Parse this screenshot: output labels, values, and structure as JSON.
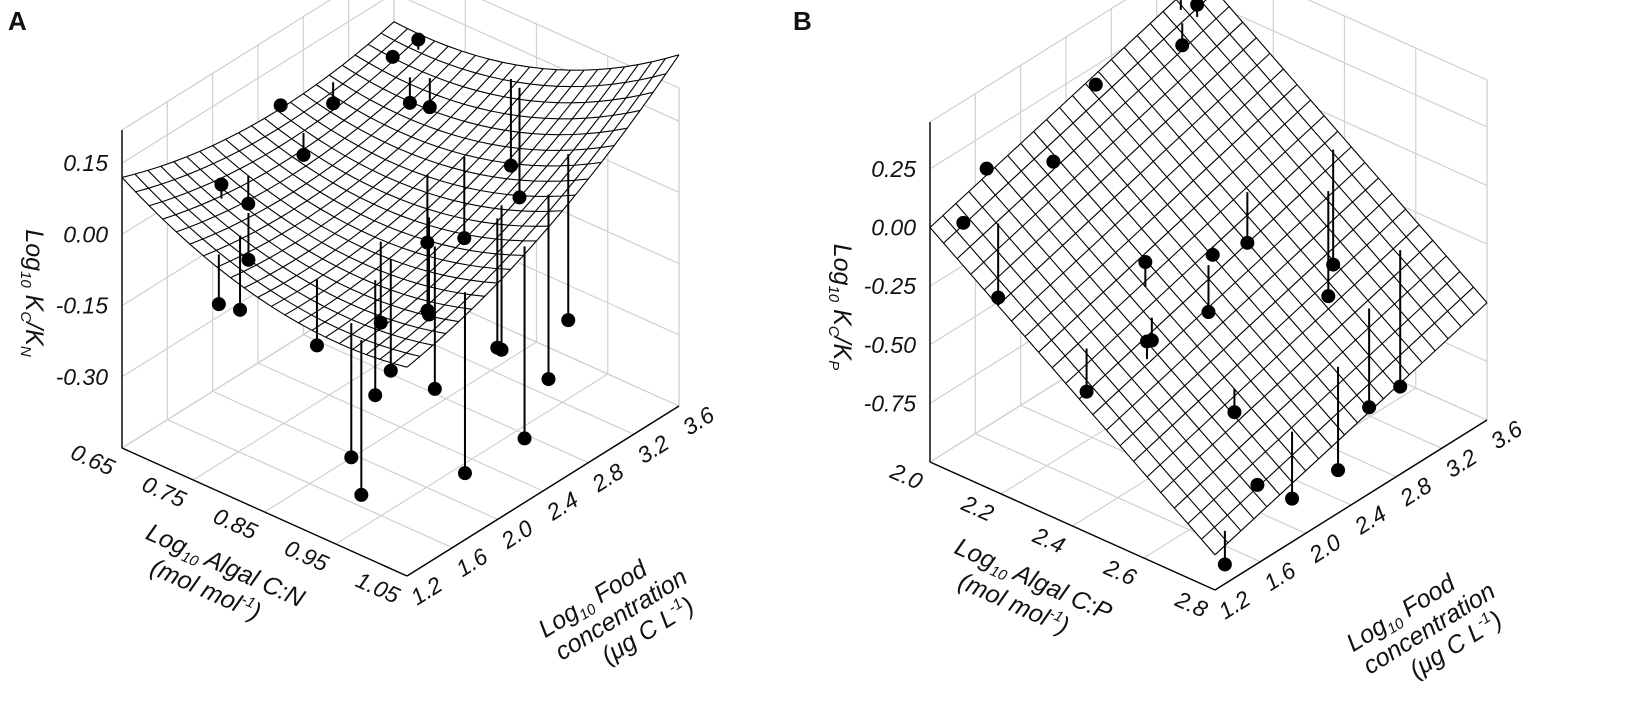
{
  "figure": {
    "background": "#ffffff",
    "line_color": "#000000",
    "grid_color": "#d0d0d0"
  },
  "chart_data": [
    {
      "type": "surface3d",
      "panel_label": "A",
      "title": "",
      "zlabel": {
        "main": "Log",
        "sub": "10",
        "after": " K",
        "sub2": "C",
        "slash": "/K",
        "sub3": "N"
      },
      "xlabel": {
        "line1_main": "Log",
        "line1_sub": "10",
        "line1_after": " Algal C:N",
        "line2_main": "(mol mol",
        "line2_sup": "-1",
        "line2_after": ")"
      },
      "ylabel": {
        "line1_main": "Log",
        "line1_sub": "10",
        "line1_after": " Food",
        "line2": "concentration",
        "line3_main": "(μg C L",
        "line3_sup": "-1",
        "line3_after": ")"
      },
      "x_ticks": [
        "0.65",
        "0.75",
        "0.85",
        "0.95",
        "1.05"
      ],
      "x_tick_values": [
        0.65,
        0.75,
        0.85,
        0.95,
        1.05
      ],
      "y_ticks": [
        "1.2",
        "1.6",
        "2.0",
        "2.4",
        "2.8",
        "3.2",
        "3.6"
      ],
      "y_tick_values": [
        1.2,
        1.6,
        2.0,
        2.4,
        2.8,
        3.2,
        3.6
      ],
      "z_ticks": [
        "0.15",
        "0.00",
        "-0.15",
        "-0.30"
      ],
      "z_tick_values": [
        0.15,
        0.0,
        -0.15,
        -0.3
      ],
      "xlim": [
        0.65,
        1.05
      ],
      "ylim": [
        1.2,
        3.6
      ],
      "zlim": [
        -0.45,
        0.22
      ],
      "surface": {
        "model": "quadratic",
        "coefficients": {
          "a": -0.38,
          "b": 0.25,
          "c": 0.19,
          "d": 0.33,
          "e": -0.22,
          "f": -0.03
        }
      },
      "points": [
        {
          "x": 0.7,
          "y": 3.5,
          "z": 0.101
        },
        {
          "x": 0.68,
          "y": 3.4,
          "z": 0.066
        },
        {
          "x": 0.72,
          "y": 3.3,
          "z": 0.011
        },
        {
          "x": 0.74,
          "y": 3.35,
          "z": 0.008
        },
        {
          "x": 0.66,
          "y": 3.0,
          "z": 0.014
        },
        {
          "x": 0.65,
          "y": 2.6,
          "z": 0.063
        },
        {
          "x": 0.69,
          "y": 2.55,
          "z": -0.007
        },
        {
          "x": 0.7,
          "y": 2.0,
          "z": -0.021
        },
        {
          "x": 0.71,
          "y": 1.7,
          "z": 0.071
        },
        {
          "x": 0.74,
          "y": 1.75,
          "z": -0.075
        },
        {
          "x": 0.77,
          "y": 1.3,
          "z": -0.081
        },
        {
          "x": 0.76,
          "y": 1.55,
          "z": -0.137
        },
        {
          "x": 0.83,
          "y": 3.5,
          "z": -0.077
        },
        {
          "x": 0.85,
          "y": 3.45,
          "z": -0.123
        },
        {
          "x": 0.86,
          "y": 2.9,
          "z": -0.12
        },
        {
          "x": 0.84,
          "y": 2.7,
          "z": -0.113
        },
        {
          "x": 0.89,
          "y": 2.4,
          "z": -0.186
        },
        {
          "x": 0.88,
          "y": 2.45,
          "z": -0.192
        },
        {
          "x": 0.87,
          "y": 2.1,
          "z": -0.172
        },
        {
          "x": 0.9,
          "y": 2.0,
          "z": -0.238
        },
        {
          "x": 0.86,
          "y": 1.6,
          "z": -0.152
        },
        {
          "x": 0.91,
          "y": 1.8,
          "z": -0.253
        },
        {
          "x": 0.94,
          "y": 1.4,
          "z": -0.304
        },
        {
          "x": 0.97,
          "y": 1.3,
          "z": -0.348
        },
        {
          "x": 0.93,
          "y": 2.2,
          "z": -0.286
        },
        {
          "x": 0.97,
          "y": 2.5,
          "z": -0.217
        },
        {
          "x": 0.99,
          "y": 3.0,
          "z": -0.22
        },
        {
          "x": 1.01,
          "y": 2.7,
          "z": -0.286
        },
        {
          "x": 1.02,
          "y": 1.9,
          "z": -0.358
        },
        {
          "x": 1.04,
          "y": 2.3,
          "z": -0.331
        },
        {
          "x": 0.96,
          "y": 2.6,
          "z": -0.243
        }
      ],
      "grid": true,
      "legend": "none"
    },
    {
      "type": "surface3d",
      "panel_label": "B",
      "title": "",
      "zlabel": {
        "main": "Log",
        "sub": "10",
        "after": " K",
        "sub2": "C",
        "slash": "/K",
        "sub3": "P"
      },
      "xlabel": {
        "line1_main": "Log",
        "line1_sub": "10",
        "line1_after": " Algal C:P",
        "line2_main": "(mol mol",
        "line2_sup": "-1",
        "line2_after": ")"
      },
      "ylabel": {
        "line1_main": "Log",
        "line1_sub": "10",
        "line1_after": " Food",
        "line2": "concentration",
        "line3_main": "(μg C L",
        "line3_sup": "-1",
        "line3_after": ")"
      },
      "x_ticks": [
        "2.0",
        "2.2",
        "2.4",
        "2.6",
        "2.8"
      ],
      "x_tick_values": [
        2.0,
        2.2,
        2.4,
        2.6,
        2.8
      ],
      "y_ticks": [
        "1.2",
        "1.6",
        "2.0",
        "2.4",
        "2.8",
        "3.2",
        "3.6"
      ],
      "y_tick_values": [
        1.2,
        1.6,
        2.0,
        2.4,
        2.8,
        3.2,
        3.6
      ],
      "z_ticks": [
        "0.25",
        "0.00",
        "-0.25",
        "-0.50",
        "-0.75"
      ],
      "z_tick_values": [
        0.25,
        0.0,
        -0.25,
        -0.5,
        -0.75
      ],
      "xlim": [
        2.0,
        2.8
      ],
      "ylim": [
        1.2,
        3.6
      ],
      "zlim": [
        -1.0,
        0.45
      ],
      "surface": {
        "model": "plane",
        "coefficients": {
          "a": 0.0,
          "b": -0.85,
          "c": 0.35
        }
      },
      "points": [
        {
          "x": 2.05,
          "y": 3.4,
          "z": 0.32
        },
        {
          "x": 2.04,
          "y": 3.3,
          "z": 0.17
        },
        {
          "x": 2.02,
          "y": 3.35,
          "z": 0.45
        },
        {
          "x": 2.02,
          "y": 2.6,
          "z": 0.2
        },
        {
          "x": 2.06,
          "y": 2.1,
          "z": 0.05
        },
        {
          "x": 2.0,
          "y": 1.7,
          "z": 0.1
        },
        {
          "x": 2.03,
          "y": 1.4,
          "z": -0.02
        },
        {
          "x": 2.08,
          "y": 1.55,
          "z": -0.35
        },
        {
          "x": 2.4,
          "y": 3.5,
          "z": -0.58
        },
        {
          "x": 2.45,
          "y": 3.3,
          "z": -0.62
        },
        {
          "x": 2.35,
          "y": 2.9,
          "z": -0.34
        },
        {
          "x": 2.4,
          "y": 2.4,
          "z": -0.45
        },
        {
          "x": 2.38,
          "y": 2.5,
          "z": -0.25
        },
        {
          "x": 2.35,
          "y": 2.0,
          "z": -0.15
        },
        {
          "x": 2.4,
          "y": 1.9,
          "z": -0.42
        },
        {
          "x": 2.45,
          "y": 1.7,
          "z": -0.33
        },
        {
          "x": 2.36,
          "y": 1.45,
          "z": -0.53
        },
        {
          "x": 2.62,
          "y": 3.4,
          "z": -0.92
        },
        {
          "x": 2.66,
          "y": 3.0,
          "z": -0.86
        },
        {
          "x": 2.7,
          "y": 2.6,
          "z": -0.98
        },
        {
          "x": 2.73,
          "y": 2.1,
          "z": -0.93
        },
        {
          "x": 2.76,
          "y": 1.7,
          "z": -0.73
        },
        {
          "x": 2.78,
          "y": 1.35,
          "z": -0.95
        },
        {
          "x": 2.6,
          "y": 2.0,
          "z": -0.62
        }
      ],
      "grid": true,
      "legend": "none"
    }
  ]
}
